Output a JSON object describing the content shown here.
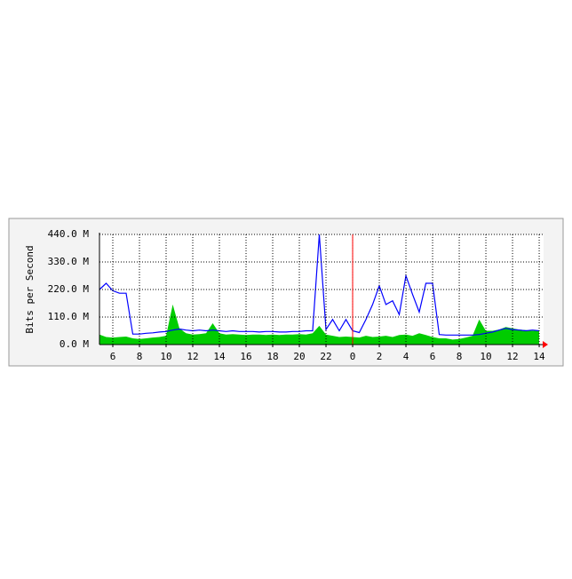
{
  "chart_data": {
    "type": "area-line",
    "ylabel": "Bits per Second",
    "x": [
      5,
      5.5,
      6,
      6.5,
      7,
      7.5,
      8,
      8.5,
      9,
      9.5,
      10,
      10.5,
      11,
      11.5,
      12,
      12.5,
      13,
      13.5,
      14,
      14.5,
      15,
      15.5,
      16,
      16.5,
      17,
      17.5,
      18,
      18.5,
      19,
      19.5,
      20,
      20.5,
      21,
      21.5,
      22,
      22.5,
      23,
      23.5,
      24,
      24.5,
      25,
      25.5,
      26,
      26.5,
      27,
      27.5,
      28,
      28.5,
      29,
      29.5,
      30,
      30.5,
      31,
      31.5,
      32,
      32.5,
      33,
      33.5,
      34,
      34.5,
      35,
      35.5,
      36,
      36.5,
      37,
      37.5,
      38
    ],
    "series": [
      {
        "style": "area",
        "color": "#00cc00",
        "values": [
          40,
          30,
          28,
          30,
          32,
          25,
          22,
          25,
          28,
          30,
          35,
          160,
          65,
          45,
          40,
          42,
          45,
          85,
          45,
          40,
          42,
          40,
          38,
          40,
          40,
          38,
          40,
          38,
          40,
          40,
          42,
          40,
          45,
          75,
          40,
          35,
          30,
          32,
          30,
          28,
          35,
          30,
          32,
          35,
          30,
          38,
          40,
          35,
          45,
          38,
          30,
          25,
          25,
          20,
          22,
          28,
          35,
          100,
          55,
          55,
          60,
          70,
          65,
          60,
          58,
          55,
          55
        ]
      },
      {
        "style": "line",
        "color": "#0000ff",
        "values": [
          220,
          245,
          215,
          205,
          205,
          42,
          42,
          45,
          47,
          50,
          52,
          58,
          62,
          58,
          55,
          58,
          55,
          58,
          55,
          52,
          55,
          52,
          52,
          52,
          50,
          52,
          52,
          50,
          50,
          52,
          52,
          55,
          55,
          440,
          60,
          100,
          55,
          100,
          55,
          48,
          100,
          160,
          235,
          160,
          175,
          120,
          275,
          200,
          130,
          245,
          245,
          40,
          38,
          38,
          38,
          38,
          38,
          40,
          45,
          50,
          58,
          65,
          60,
          58,
          55,
          58,
          55
        ]
      }
    ],
    "xlim": [
      5,
      38.33
    ],
    "xticks": [
      6,
      8,
      10,
      12,
      14,
      16,
      18,
      20,
      22,
      {
        "value": 24,
        "label": "0"
      },
      {
        "value": 26,
        "label": "2"
      },
      {
        "value": 28,
        "label": "4"
      },
      {
        "value": 30,
        "label": "6"
      },
      {
        "value": 32,
        "label": "8"
      },
      {
        "value": 34,
        "label": "10"
      },
      {
        "value": 36,
        "label": "12"
      },
      {
        "value": 38,
        "label": "14"
      }
    ],
    "ylim": [
      0,
      440
    ],
    "yticks": [
      {
        "value": 0,
        "label": "0.0 M"
      },
      {
        "value": 110,
        "label": "110.0 M"
      },
      {
        "value": 220,
        "label": "220.0 M"
      },
      {
        "value": 330,
        "label": "330.0 M"
      },
      {
        "value": 440,
        "label": "440.0 M"
      }
    ],
    "grid": true,
    "vline": {
      "x": 24,
      "color": "#ff0000"
    }
  }
}
